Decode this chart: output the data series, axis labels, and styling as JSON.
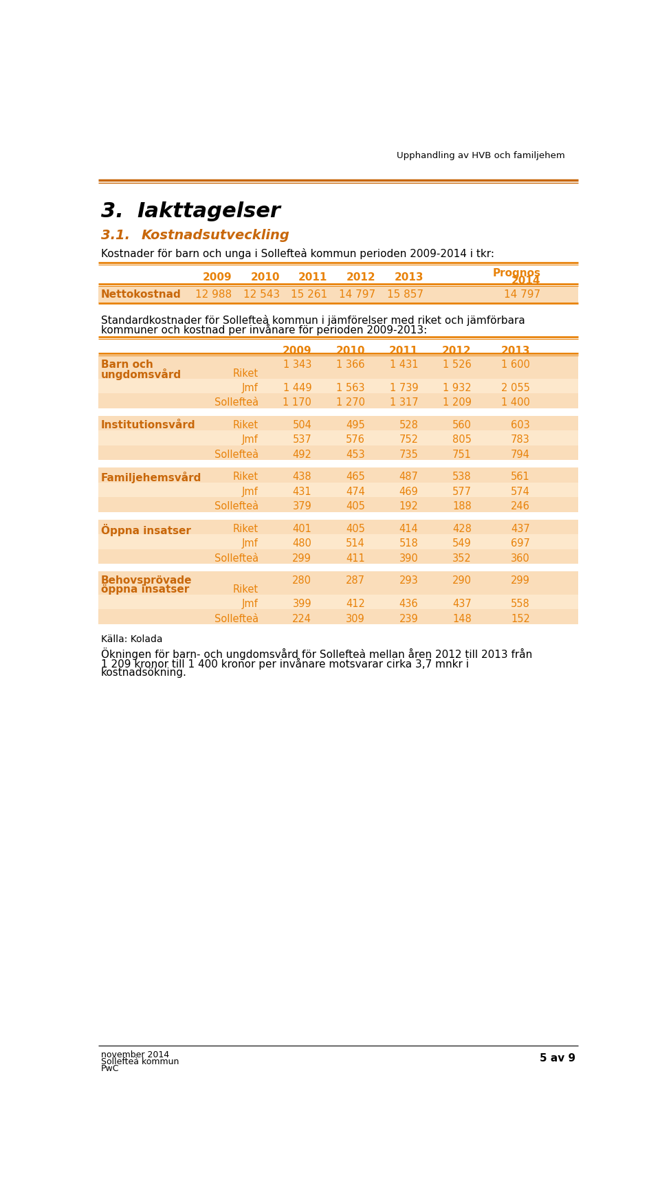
{
  "header_text": "Upphandling av HVB och familjehem",
  "section_num": "3.",
  "section_title": "Iakttagelser",
  "subsection_num": "3.1.",
  "subsection_title": "Kostnadsutveckling",
  "intro_text": "Kostnader för barn och unga i Sollefteà kommun perioden 2009-2014 i tkr:",
  "table2_intro_line1": "Standardkostnader för Sollefteà kommun i jämförelser med riket och jämförbara",
  "table2_intro_line2": "kommuner och kostnad per invånare för perioden 2009-2013:",
  "netto_vals": [
    "12 988",
    "12 543",
    "15 261",
    "14 797",
    "15 857",
    "14 797"
  ],
  "sec_data": [
    {
      "cat": "Barn och\nungdomsvård",
      "rows": [
        [
          "Riket",
          "1 343",
          "1 366",
          "1 431",
          "1 526",
          "1 600"
        ],
        [
          "Jmf",
          "1 449",
          "1 563",
          "1 739",
          "1 932",
          "2 055"
        ],
        [
          "Sollefteà",
          "1 170",
          "1 270",
          "1 317",
          "1 209",
          "1 400"
        ]
      ]
    },
    {
      "cat": "Institutionsvård",
      "rows": [
        [
          "Riket",
          "504",
          "495",
          "528",
          "560",
          "603"
        ],
        [
          "Jmf",
          "537",
          "576",
          "752",
          "805",
          "783"
        ],
        [
          "Sollefteà",
          "492",
          "453",
          "735",
          "751",
          "794"
        ]
      ]
    },
    {
      "cat": "Familjehemsvård",
      "rows": [
        [
          "Riket",
          "438",
          "465",
          "487",
          "538",
          "561"
        ],
        [
          "Jmf",
          "431",
          "474",
          "469",
          "577",
          "574"
        ],
        [
          "Sollefteà",
          "379",
          "405",
          "192",
          "188",
          "246"
        ]
      ]
    },
    {
      "cat": "Öppna insatser",
      "rows": [
        [
          "Riket",
          "401",
          "405",
          "414",
          "428",
          "437"
        ],
        [
          "Jmf",
          "480",
          "514",
          "518",
          "549",
          "697"
        ],
        [
          "Sollefteà",
          "299",
          "411",
          "390",
          "352",
          "360"
        ]
      ]
    },
    {
      "cat": "Behovsprövade\nöppna insatser",
      "rows": [
        [
          "Riket",
          "280",
          "287",
          "293",
          "290",
          "299"
        ],
        [
          "Jmf",
          "399",
          "412",
          "436",
          "437",
          "558"
        ],
        [
          "Sollefteà",
          "224",
          "309",
          "239",
          "148",
          "152"
        ]
      ]
    }
  ],
  "source_text": "Källa: Kolada",
  "closing_line1": "Ökningen för barn- och ungdomsvård för Sollefteà mellan åren 2012 till 2013 från",
  "closing_line2": "1 209 kronor till 1 400 kronor per invånare motsvarar cirka 3,7 mnkr i",
  "closing_line3": "kostnadsökning.",
  "footer_date": "november 2014",
  "footer_mun": "Sollefteà kommun",
  "footer_firm": "PwC",
  "footer_page": "5 av 9",
  "orange_dark": "#C8670A",
  "orange_mid": "#E8820A",
  "orange_light": "#FADDBA",
  "orange_lighter": "#FDE8CC",
  "bg_color": "#FFFFFF",
  "black": "#000000"
}
